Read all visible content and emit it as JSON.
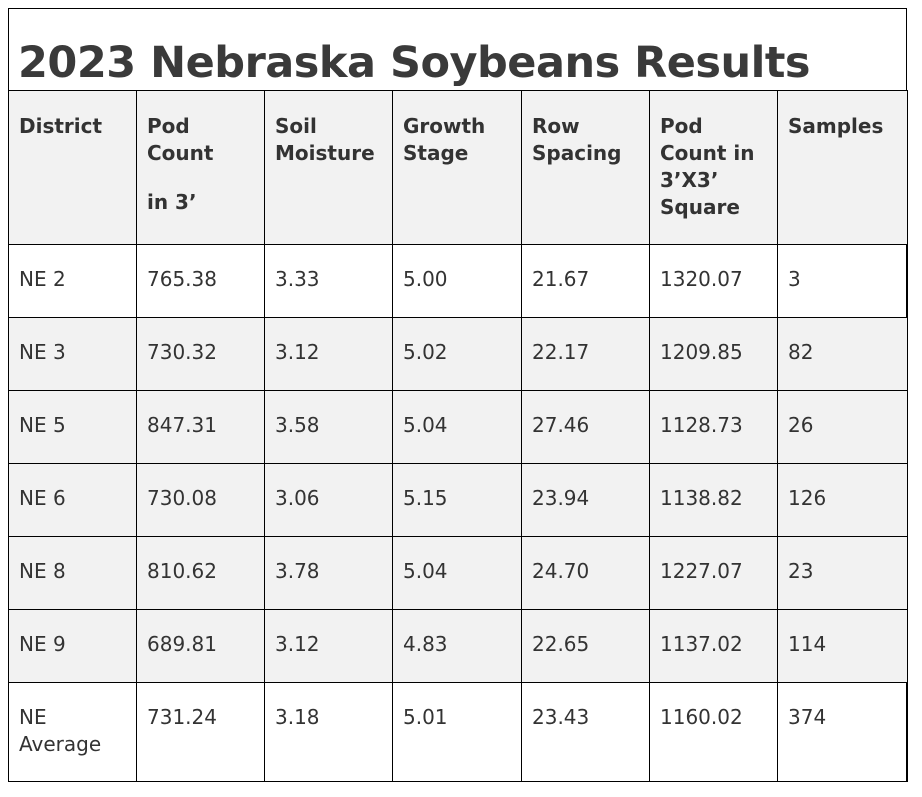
{
  "title": "2023 Nebraska Soybeans Results",
  "headers": {
    "district": "District",
    "pod_count_1": "Pod",
    "pod_count_2": "Count",
    "pod_count_3": "in 3’",
    "soil_moisture_1": "Soil",
    "soil_moisture_2": "Moisture",
    "growth_stage_1": "Growth",
    "growth_stage_2": "Stage",
    "row_spacing_1": "Row",
    "row_spacing_2": "Spacing",
    "pod_square_1": "Pod",
    "pod_square_2": "Count in",
    "pod_square_3": "3’X3’",
    "pod_square_4": "Square",
    "samples": "Samples"
  },
  "rows": [
    {
      "district": "NE 2",
      "pod_count": "765.38",
      "soil_moisture": "3.33",
      "growth_stage": "5.00",
      "row_spacing": "21.67",
      "pod_count_square": "1320.07",
      "samples": "3"
    },
    {
      "district": "NE 3",
      "pod_count": "730.32",
      "soil_moisture": "3.12",
      "growth_stage": "5.02",
      "row_spacing": "22.17",
      "pod_count_square": "1209.85",
      "samples": "82"
    },
    {
      "district": "NE 5",
      "pod_count": "847.31",
      "soil_moisture": "3.58",
      "growth_stage": "5.04",
      "row_spacing": "27.46",
      "pod_count_square": "1128.73",
      "samples": "26"
    },
    {
      "district": "NE 6",
      "pod_count": "730.08",
      "soil_moisture": "3.06",
      "growth_stage": "5.15",
      "row_spacing": "23.94",
      "pod_count_square": "1138.82",
      "samples": "126"
    },
    {
      "district": "NE 8",
      "pod_count": "810.62",
      "soil_moisture": "3.78",
      "growth_stage": "5.04",
      "row_spacing": "24.70",
      "pod_count_square": "1227.07",
      "samples": "23"
    },
    {
      "district": "NE 9",
      "pod_count": "689.81",
      "soil_moisture": "3.12",
      "growth_stage": "4.83",
      "row_spacing": "22.65",
      "pod_count_square": "1137.02",
      "samples": "114"
    },
    {
      "district_1": "NE",
      "district_2": "Average",
      "pod_count": "731.24",
      "soil_moisture": "3.18",
      "growth_stage": "5.01",
      "row_spacing": "23.43",
      "pod_count_square": "1160.02",
      "samples": "374"
    }
  ]
}
